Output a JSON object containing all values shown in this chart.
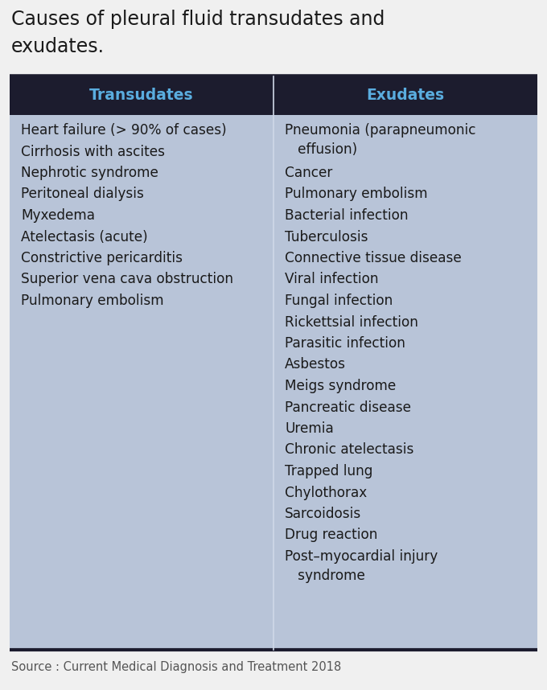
{
  "title_line1": "Causes of pleural fluid transudates and",
  "title_line2": "exudates.",
  "title_fontsize": 17,
  "title_color": "#1a1a1a",
  "header_bg_color": "#1c1c2e",
  "table_bg_color": "#b8c4d8",
  "outer_bg_color": "#f0f0f0",
  "header_text_color": "#5aaddf",
  "header_fontsize": 13.5,
  "body_fontsize": 12.2,
  "body_text_color": "#1a1a1a",
  "source_text": "Source : Current Medical Diagnosis and Treatment 2018",
  "source_fontsize": 10.5,
  "source_color": "#555555",
  "col1_header": "Transudates",
  "col2_header": "Exudates",
  "col1_items": [
    "Heart failure (> 90% of cases)",
    "Cirrhosis with ascites",
    "Nephrotic syndrome",
    "Peritoneal dialysis",
    "Myxedema",
    "Atelectasis (acute)",
    "Constrictive pericarditis",
    "Superior vena cava obstruction",
    "Pulmonary embolism"
  ],
  "col2_items": [
    [
      "Pneumonia (parapneumonic",
      "   effusion)"
    ],
    [
      "Cancer"
    ],
    [
      "Pulmonary embolism"
    ],
    [
      "Bacterial infection"
    ],
    [
      "Tuberculosis"
    ],
    [
      "Connective tissue disease"
    ],
    [
      "Viral infection"
    ],
    [
      "Fungal infection"
    ],
    [
      "Rickettsial infection"
    ],
    [
      "Parasitic infection"
    ],
    [
      "Asbestos"
    ],
    [
      "Meigs syndrome"
    ],
    [
      "Pancreatic disease"
    ],
    [
      "Uremia"
    ],
    [
      "Chronic atelectasis"
    ],
    [
      "Trapped lung"
    ],
    [
      "Chylothorax"
    ],
    [
      "Sarcoidosis"
    ],
    [
      "Drug reaction"
    ],
    [
      "Post–myocardial injury",
      "   syndrome"
    ]
  ]
}
